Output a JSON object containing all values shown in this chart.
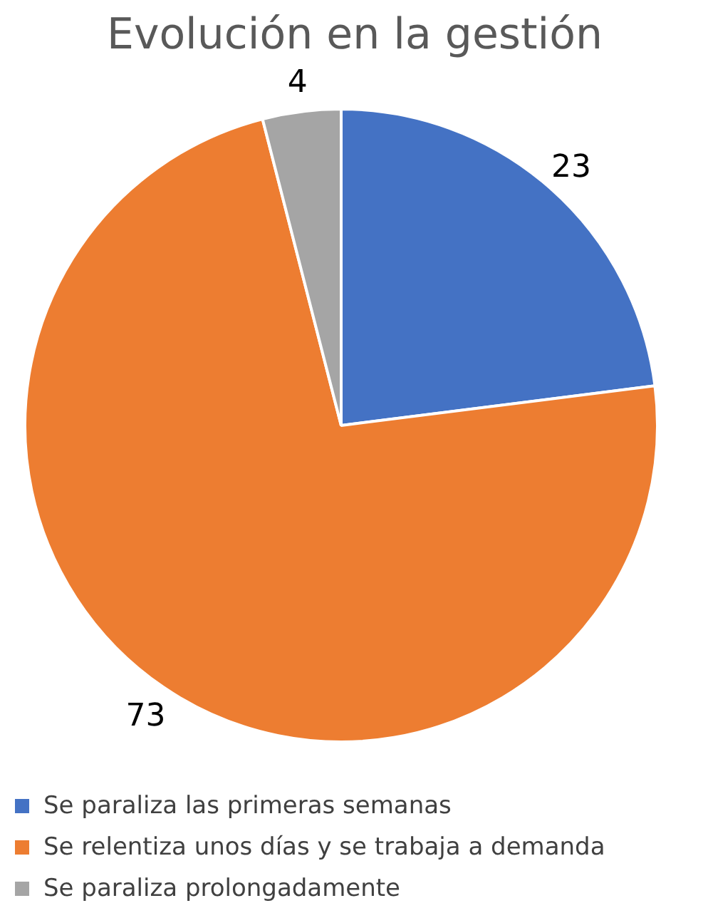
{
  "chart_data": {
    "type": "pie",
    "title": "Evolución en la gestión",
    "categories": [
      "Se paraliza las primeras semanas",
      "Se relentiza unos días y se trabaja a demanda",
      "Se paraliza prolongadamente"
    ],
    "values": [
      23,
      73,
      4
    ],
    "colors": [
      "#4472c4",
      "#ed7d31",
      "#a5a5a5"
    ],
    "data_labels": true,
    "legend": "bottom left"
  }
}
